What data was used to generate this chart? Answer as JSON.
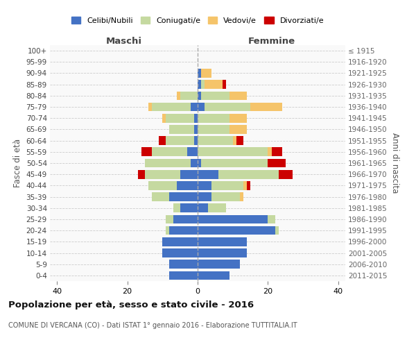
{
  "age_groups": [
    "0-4",
    "5-9",
    "10-14",
    "15-19",
    "20-24",
    "25-29",
    "30-34",
    "35-39",
    "40-44",
    "45-49",
    "50-54",
    "55-59",
    "60-64",
    "65-69",
    "70-74",
    "75-79",
    "80-84",
    "85-89",
    "90-94",
    "95-99",
    "100+"
  ],
  "birth_years": [
    "2011-2015",
    "2006-2010",
    "2001-2005",
    "1996-2000",
    "1991-1995",
    "1986-1990",
    "1981-1985",
    "1976-1980",
    "1971-1975",
    "1966-1970",
    "1961-1965",
    "1956-1960",
    "1951-1955",
    "1946-1950",
    "1941-1945",
    "1936-1940",
    "1931-1935",
    "1926-1930",
    "1921-1925",
    "1916-1920",
    "≤ 1915"
  ],
  "maschi": {
    "celibi": [
      8,
      8,
      10,
      10,
      8,
      7,
      5,
      8,
      6,
      5,
      2,
      3,
      1,
      1,
      1,
      2,
      0,
      0,
      0,
      0,
      0
    ],
    "coniugati": [
      0,
      0,
      0,
      0,
      1,
      2,
      2,
      5,
      8,
      10,
      13,
      10,
      8,
      7,
      8,
      11,
      5,
      0,
      0,
      0,
      0
    ],
    "vedovi": [
      0,
      0,
      0,
      0,
      0,
      0,
      0,
      0,
      0,
      0,
      0,
      0,
      0,
      0,
      1,
      1,
      1,
      0,
      0,
      0,
      0
    ],
    "divorziati": [
      0,
      0,
      0,
      0,
      0,
      0,
      0,
      0,
      0,
      2,
      0,
      3,
      2,
      0,
      0,
      0,
      0,
      0,
      0,
      0,
      0
    ]
  },
  "femmine": {
    "nubili": [
      9,
      12,
      14,
      14,
      22,
      20,
      3,
      4,
      4,
      6,
      1,
      0,
      0,
      0,
      0,
      2,
      1,
      1,
      1,
      0,
      0
    ],
    "coniugate": [
      0,
      0,
      0,
      0,
      1,
      2,
      5,
      8,
      9,
      17,
      19,
      20,
      10,
      9,
      9,
      13,
      8,
      1,
      0,
      0,
      0
    ],
    "vedove": [
      0,
      0,
      0,
      0,
      0,
      0,
      0,
      1,
      1,
      0,
      0,
      1,
      1,
      5,
      5,
      9,
      5,
      5,
      3,
      0,
      0
    ],
    "divorziate": [
      0,
      0,
      0,
      0,
      0,
      0,
      0,
      0,
      1,
      4,
      5,
      3,
      2,
      0,
      0,
      0,
      0,
      1,
      0,
      0,
      0
    ]
  },
  "colors": {
    "celibi": "#4472c4",
    "coniugati": "#c5d9a0",
    "vedovi": "#f5c46a",
    "divorziati": "#cc0000"
  },
  "xlim": 42,
  "title": "Popolazione per età, sesso e stato civile - 2016",
  "subtitle": "COMUNE DI VERCANA (CO) - Dati ISTAT 1° gennaio 2016 - Elaborazione TUTTITALIA.IT",
  "ylabel": "Fasce di età",
  "ylabel_right": "Anni di nascita",
  "legend_labels": [
    "Celibi/Nubili",
    "Coniugati/e",
    "Vedovi/e",
    "Divorziati/e"
  ],
  "maschi_label": "Maschi",
  "femmine_label": "Femmine",
  "bg_color": "#f9f9f9"
}
